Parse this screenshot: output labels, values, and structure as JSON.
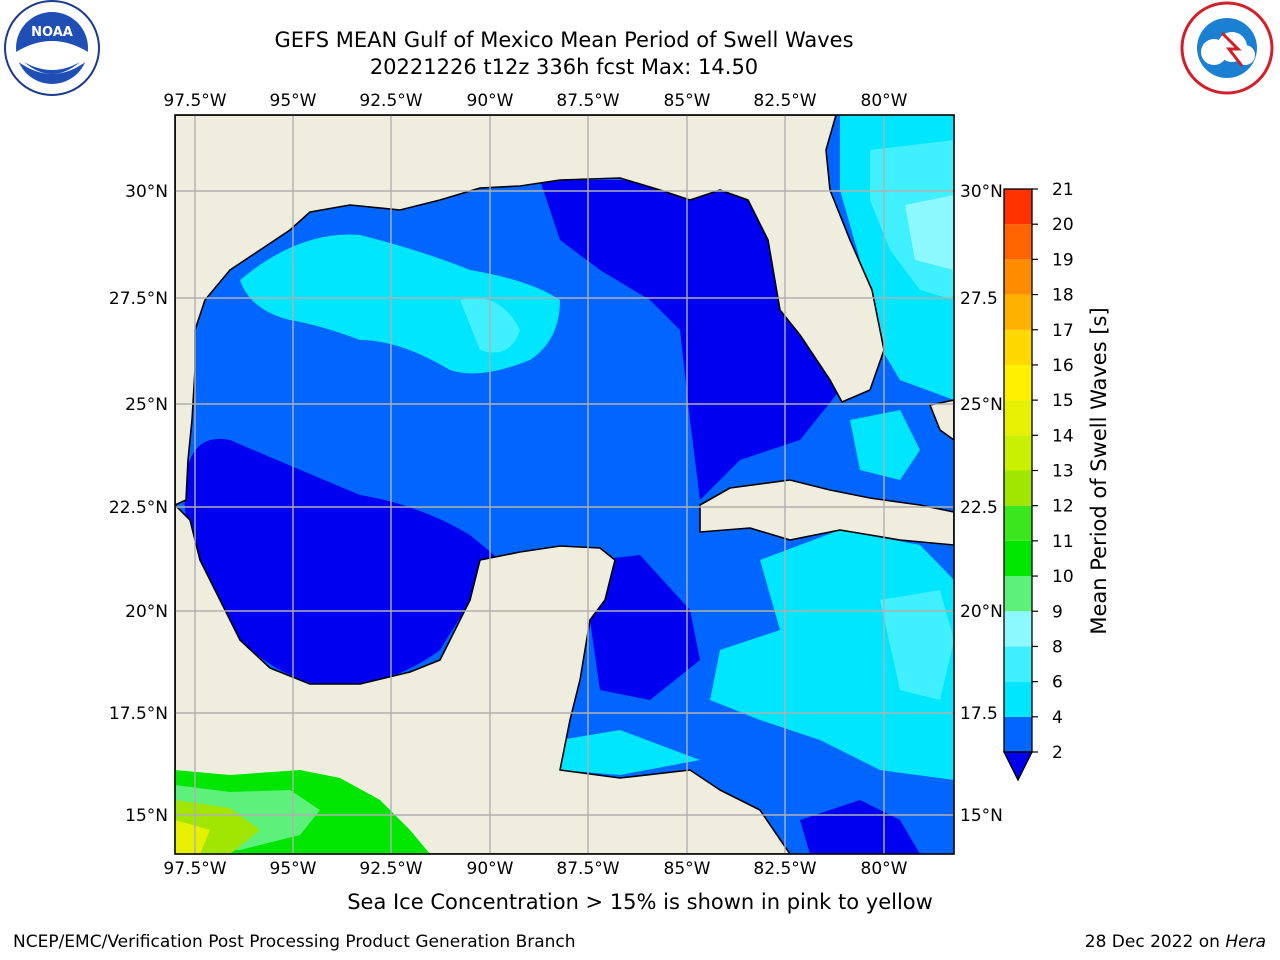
{
  "title": "GEFS MEAN Gulf of Mexico Mean Period of Swell Waves",
  "subtitle": "20221226 t12z 336h fcst   Max: 14.50",
  "logos": {
    "left": "NOAA",
    "right": "NATIONAL WEATHER SERVICE"
  },
  "map": {
    "lon_range": [
      -98.0,
      -78.2
    ],
    "lat_range": [
      14.0,
      32.0
    ],
    "lon_ticks": [
      "97.5°W",
      "95°W",
      "92.5°W",
      "90°W",
      "87.5°W",
      "85°W",
      "82.5°W",
      "80°W"
    ],
    "lat_ticks_left": [
      "30°N",
      "27.5°N",
      "25°N",
      "22.5°N",
      "20°N",
      "17.5°N",
      "15°N"
    ],
    "lat_ticks_right": [
      "30°N",
      "27.5",
      "25°N",
      "22.5",
      "20°N",
      "17.5",
      "15°N"
    ],
    "grid": true,
    "land_color": "#efedde",
    "gridline_color": "#b0b0b0"
  },
  "colorbar": {
    "label": "Mean Period of Swell Waves [s]",
    "ticks": [
      "2",
      "4",
      "6",
      "8",
      "9",
      "10",
      "11",
      "12",
      "13",
      "14",
      "15",
      "16",
      "17",
      "18",
      "19",
      "20",
      "21"
    ],
    "colors": [
      "#0066ff",
      "#00e6ff",
      "#40f0ff",
      "#8cf8ff",
      "#5df07a",
      "#00e600",
      "#3ce61e",
      "#a0e600",
      "#c8f000",
      "#e6f000",
      "#fff000",
      "#ffd800",
      "#ffb000",
      "#ff8c00",
      "#ff6400",
      "#ff3200",
      "#ff0000"
    ],
    "extend_color": "#0000f0"
  },
  "note": "Sea Ice Concentration > 15% is shown in pink to yellow",
  "footer": {
    "left": "NCEP/EMC/Verification Post Processing Product Generation Branch",
    "right_prefix": "28 Dec 2022 on ",
    "right_host": "Hera"
  }
}
